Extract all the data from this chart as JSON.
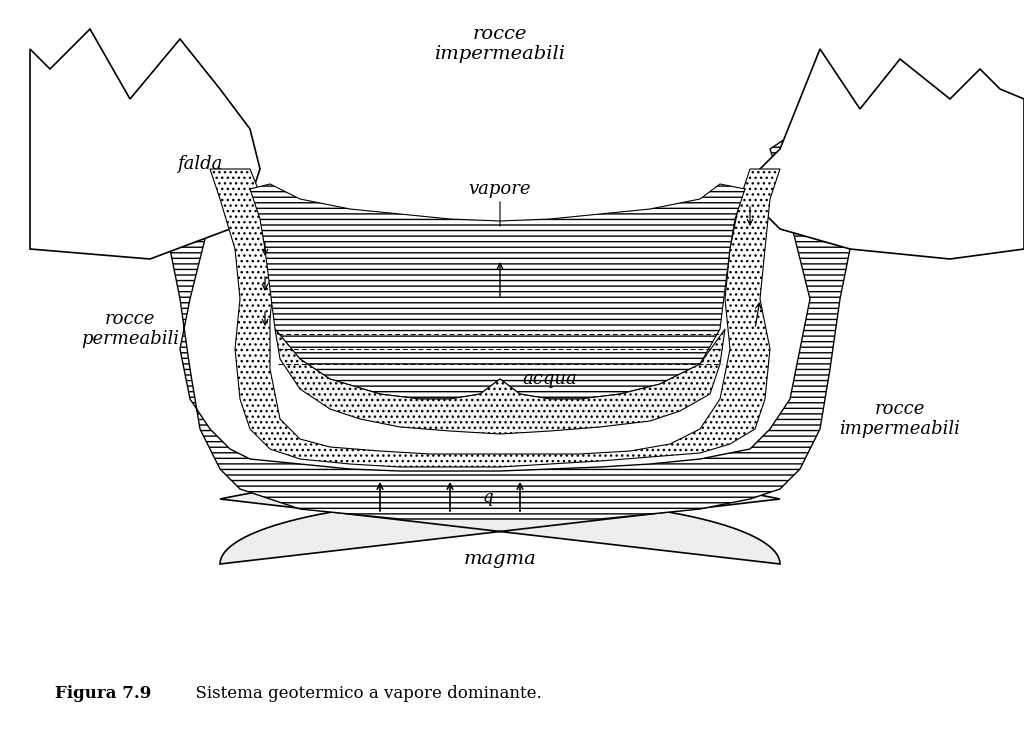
{
  "title": "",
  "caption_bold": "Figura 7.9",
  "caption_text": "  Sistema geotermico a vapore dominante.",
  "background_color": "#ffffff",
  "labels": {
    "rocce_impermeabili_top": "rocce\nimpermeabili",
    "falda": "falda",
    "vapore": "vapore",
    "acqua": "acqua",
    "rocce_permeabili": "rocce\npermeabili",
    "rocce_impermeabili_right": "rocce\nimpermeabili",
    "q": "q",
    "magma": "magma"
  },
  "hatch_horizontal": "---",
  "hatch_dotted": "...",
  "line_color": "#000000",
  "fill_color_impermeable": "#cccccc",
  "fill_color_permeable": "#ffffff"
}
